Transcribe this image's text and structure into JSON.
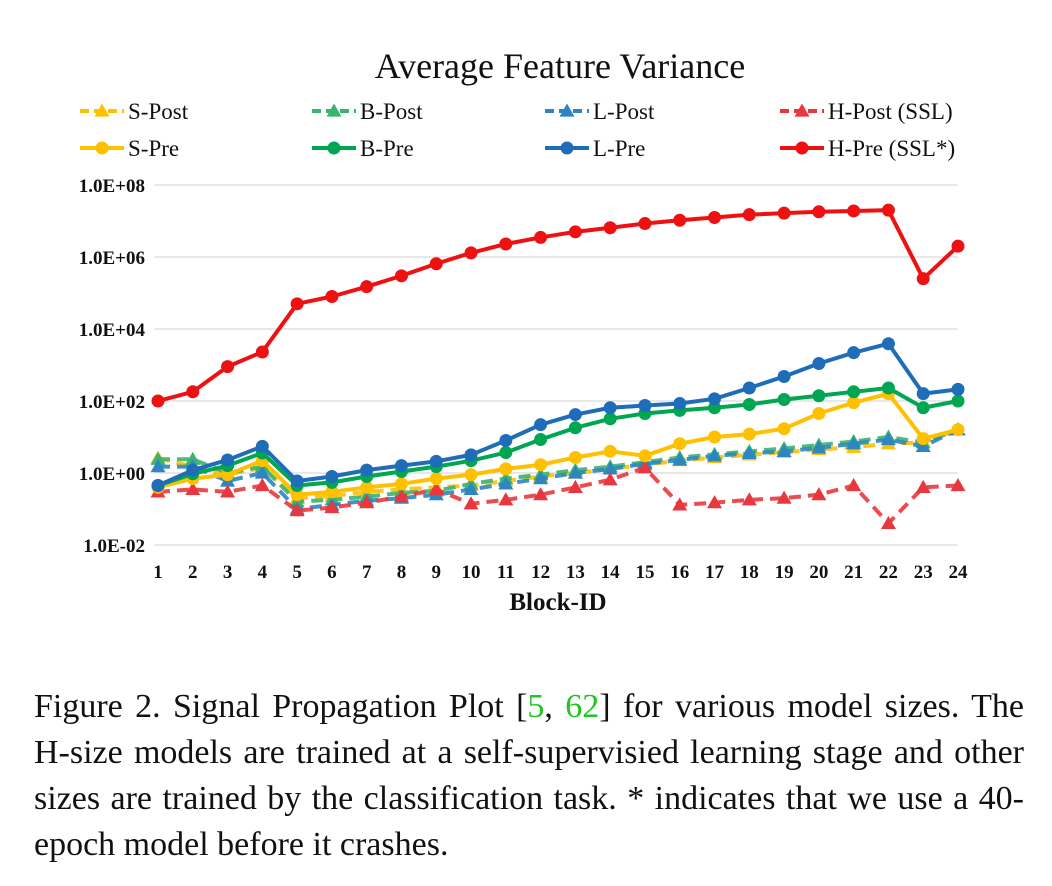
{
  "chart_data": {
    "type": "line",
    "title": "Average Feature Variance",
    "xlabel": "Block-ID",
    "ylabel": "",
    "yscale": "log",
    "ylim": [
      0.01,
      100000000
    ],
    "ytick_values": [
      0.01,
      1,
      100,
      10000,
      1000000,
      100000000
    ],
    "ytick_labels": [
      "1.0E-02",
      "1.0E+00",
      "1.0E+02",
      "1.0E+04",
      "1.0E+06",
      "1.0E+08"
    ],
    "categories": [
      "1",
      "2",
      "3",
      "4",
      "5",
      "6",
      "7",
      "8",
      "9",
      "10",
      "11",
      "12",
      "13",
      "14",
      "15",
      "16",
      "17",
      "18",
      "19",
      "20",
      "21",
      "22",
      "23",
      "24"
    ],
    "grid": "horizontal",
    "legend_position": "top",
    "series": [
      {
        "name": "S-Post",
        "color": "#FFC000",
        "dashed": true,
        "marker": "triangle",
        "values": [
          2.6,
          1.5,
          0.9,
          1.4,
          0.2,
          0.23,
          0.3,
          0.35,
          0.4,
          0.45,
          0.6,
          0.8,
          1.0,
          1.3,
          1.7,
          2.2,
          2.7,
          3.2,
          3.8,
          4.5,
          5.2,
          6.5,
          7,
          16
        ]
      },
      {
        "name": "B-Post",
        "color": "#3CB371",
        "dashed": true,
        "marker": "triangle",
        "values": [
          2.4,
          2.4,
          1.0,
          1.5,
          0.16,
          0.18,
          0.22,
          0.28,
          0.32,
          0.5,
          0.7,
          0.9,
          1.2,
          1.5,
          2.0,
          2.7,
          3.3,
          4.0,
          4.8,
          6,
          7.5,
          10,
          7,
          16
        ]
      },
      {
        "name": "L-Post",
        "color": "#2E86C1",
        "dashed": true,
        "marker": "triangle",
        "values": [
          1.5,
          1.5,
          0.6,
          1.0,
          0.1,
          0.13,
          0.17,
          0.2,
          0.25,
          0.35,
          0.5,
          0.7,
          1.0,
          1.3,
          1.8,
          2.3,
          3.0,
          3.5,
          4.0,
          5.0,
          6.5,
          8.5,
          5.5,
          16
        ]
      },
      {
        "name": "H-Post (SSL)",
        "color": "#E8383D",
        "dashed": true,
        "marker": "triangle",
        "values": [
          0.3,
          0.35,
          0.3,
          0.45,
          0.09,
          0.11,
          0.15,
          0.22,
          0.35,
          0.14,
          0.18,
          0.25,
          0.4,
          0.65,
          1.4,
          0.13,
          0.15,
          0.18,
          0.2,
          0.25,
          0.45,
          0.04,
          0.4,
          0.45
        ]
      },
      {
        "name": "S-Pre",
        "color": "#FFC000",
        "dashed": false,
        "marker": "circle",
        "values": [
          0.4,
          0.7,
          0.9,
          2.2,
          0.25,
          0.3,
          0.4,
          0.5,
          0.7,
          0.9,
          1.3,
          1.7,
          2.7,
          4.0,
          3.0,
          6.5,
          10,
          12,
          17,
          45,
          90,
          160,
          9,
          16
        ]
      },
      {
        "name": "B-Pre",
        "color": "#00A651",
        "dashed": false,
        "marker": "circle",
        "values": [
          0.45,
          0.95,
          1.6,
          3.6,
          0.45,
          0.55,
          0.8,
          1.1,
          1.5,
          2.2,
          3.7,
          8.5,
          18,
          32,
          45,
          55,
          65,
          80,
          110,
          140,
          180,
          230,
          65,
          100
        ]
      },
      {
        "name": "L-Pre",
        "color": "#1F6DB8",
        "dashed": false,
        "marker": "circle",
        "values": [
          0.45,
          1.2,
          2.3,
          5.5,
          0.6,
          0.8,
          1.2,
          1.6,
          2.1,
          3.2,
          8.0,
          22,
          42,
          65,
          75,
          85,
          115,
          230,
          480,
          1100,
          2200,
          3900,
          160,
          210
        ]
      },
      {
        "name": "H-Pre (SSL*)",
        "color": "#EE1111",
        "dashed": false,
        "marker": "circle",
        "values": [
          100,
          180,
          900,
          2300,
          50000,
          80000,
          150000,
          300000,
          650000,
          1300000,
          2300000,
          3500000,
          5000000,
          6500000,
          8500000,
          10500000,
          12500000,
          15000000,
          16500000,
          18000000,
          19000000,
          20000000,
          250000,
          2000000
        ]
      }
    ]
  },
  "caption": {
    "label": "Figure 2.",
    "text_before": " Signal Propagation Plot [",
    "ref1": "5",
    "ref_sep": ", ",
    "ref2": "62",
    "text_after": "] for various model sizes. The H-size models are trained at a self-supervisied learning stage and other sizes are trained by the classification task.  * indicates that we use a 40-epoch model before it crashes."
  }
}
